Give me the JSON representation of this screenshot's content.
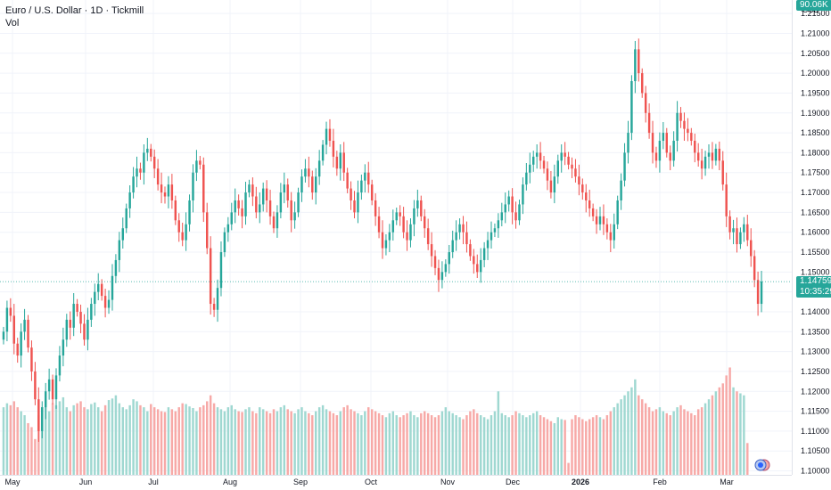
{
  "header": {
    "symbol_title": "Euro / U.S. Dollar · 1D · Tickmill",
    "volume_label": "Vol"
  },
  "axis": {
    "currency": "USD"
  },
  "badges": {
    "last_price": "1.14759",
    "countdown": "10:35:29",
    "volume_value": "90.06K"
  },
  "colors": {
    "up": "#26a69a",
    "down": "#ef5350",
    "vol_up": "#9fd8d1",
    "vol_down": "#f7a9a7",
    "grid": "#f0f3fa",
    "axis_text": "#131722"
  },
  "chart_data": {
    "type": "candlestick",
    "y_ticks": [
      "1.21500",
      "1.21000",
      "1.20500",
      "1.20000",
      "1.19500",
      "1.19000",
      "1.18500",
      "1.18000",
      "1.17500",
      "1.17000",
      "1.16500",
      "1.16000",
      "1.15500",
      "1.15000",
      "1.14500",
      "1.14000",
      "1.13500",
      "1.13000",
      "1.12500",
      "1.12000",
      "1.11500",
      "1.11000",
      "1.10500",
      "1.10000"
    ],
    "ylim": [
      1.099,
      1.2175
    ],
    "x_ticks": [
      "May",
      "Jun",
      "Jul",
      "Aug",
      "Sep",
      "Oct",
      "Nov",
      "Dec",
      "2026",
      "Feb",
      "Mar"
    ],
    "last_price": 1.14759,
    "closes": [
      1.135,
      1.141,
      1.139,
      1.132,
      1.129,
      1.135,
      1.138,
      1.131,
      1.125,
      1.118,
      1.11,
      1.116,
      1.12,
      1.123,
      1.118,
      1.124,
      1.129,
      1.133,
      1.138,
      1.136,
      1.142,
      1.14,
      1.137,
      1.133,
      1.138,
      1.142,
      1.145,
      1.147,
      1.144,
      1.141,
      1.143,
      1.149,
      1.153,
      1.158,
      1.161,
      1.166,
      1.17,
      1.174,
      1.176,
      1.175,
      1.18,
      1.181,
      1.179,
      1.176,
      1.172,
      1.17,
      1.169,
      1.172,
      1.168,
      1.163,
      1.16,
      1.158,
      1.162,
      1.168,
      1.175,
      1.178,
      1.177,
      1.165,
      1.156,
      1.142,
      1.1405,
      1.146,
      1.155,
      1.16,
      1.162,
      1.165,
      1.168,
      1.166,
      1.164,
      1.17,
      1.172,
      1.169,
      1.165,
      1.167,
      1.171,
      1.168,
      1.164,
      1.161,
      1.165,
      1.17,
      1.172,
      1.168,
      1.163,
      1.165,
      1.17,
      1.174,
      1.176,
      1.174,
      1.17,
      1.174,
      1.178,
      1.182,
      1.186,
      1.183,
      1.179,
      1.176,
      1.18,
      1.175,
      1.171,
      1.168,
      1.165,
      1.17,
      1.173,
      1.175,
      1.172,
      1.168,
      1.164,
      1.16,
      1.156,
      1.158,
      1.16,
      1.163,
      1.165,
      1.164,
      1.16,
      1.158,
      1.162,
      1.166,
      1.168,
      1.164,
      1.161,
      1.157,
      1.154,
      1.151,
      1.148,
      1.15,
      1.152,
      1.155,
      1.158,
      1.16,
      1.162,
      1.16,
      1.157,
      1.154,
      1.152,
      1.15,
      1.153,
      1.156,
      1.158,
      1.16,
      1.161,
      1.163,
      1.165,
      1.167,
      1.169,
      1.165,
      1.163,
      1.167,
      1.172,
      1.175,
      1.177,
      1.179,
      1.18,
      1.178,
      1.176,
      1.173,
      1.17,
      1.174,
      1.178,
      1.18,
      1.179,
      1.177,
      1.176,
      1.174,
      1.172,
      1.17,
      1.168,
      1.166,
      1.164,
      1.162,
      1.164,
      1.162,
      1.16,
      1.158,
      1.162,
      1.168,
      1.173,
      1.18,
      1.185,
      1.198,
      1.206,
      1.2,
      1.195,
      1.19,
      1.185,
      1.18,
      1.178,
      1.183,
      1.185,
      1.18,
      1.178,
      1.183,
      1.19,
      1.188,
      1.186,
      1.185,
      1.183,
      1.18,
      1.178,
      1.176,
      1.179,
      1.18,
      1.178,
      1.181,
      1.178,
      1.172,
      1.164,
      1.16,
      1.161,
      1.157,
      1.16,
      1.162,
      1.158,
      1.154,
      1.148,
      1.142,
      1.1476
    ],
    "volumes": [
      1.116,
      1.117,
      1.1165,
      1.1175,
      1.116,
      1.115,
      1.114,
      1.112,
      1.111,
      1.108,
      1.114,
      1.116,
      1.118,
      1.115,
      1.117,
      1.1165,
      1.1175,
      1.1185,
      1.116,
      1.115,
      1.1165,
      1.117,
      1.1175,
      1.116,
      1.1155,
      1.1168,
      1.1172,
      1.116,
      1.115,
      1.1165,
      1.1178,
      1.1182,
      1.119,
      1.117,
      1.116,
      1.1155,
      1.1165,
      1.118,
      1.1175,
      1.1165,
      1.116,
      1.115,
      1.1168,
      1.116,
      1.1155,
      1.115,
      1.1148,
      1.116,
      1.1155,
      1.115,
      1.116,
      1.117,
      1.1168,
      1.1162,
      1.1158,
      1.115,
      1.116,
      1.1165,
      1.1175,
      1.119,
      1.117,
      1.116,
      1.1155,
      1.115,
      1.116,
      1.1165,
      1.1155,
      1.115,
      1.1148,
      1.1155,
      1.116,
      1.115,
      1.1145,
      1.116,
      1.1155,
      1.115,
      1.1145,
      1.1155,
      1.115,
      1.116,
      1.1165,
      1.1155,
      1.115,
      1.1145,
      1.1155,
      1.116,
      1.115,
      1.1145,
      1.114,
      1.115,
      1.116,
      1.1165,
      1.1155,
      1.115,
      1.1145,
      1.114,
      1.115,
      1.116,
      1.1165,
      1.1155,
      1.115,
      1.1145,
      1.114,
      1.115,
      1.116,
      1.1155,
      1.115,
      1.1145,
      1.114,
      1.1135,
      1.1145,
      1.115,
      1.114,
      1.1135,
      1.114,
      1.1145,
      1.115,
      1.114,
      1.1135,
      1.1145,
      1.115,
      1.1145,
      1.114,
      1.1135,
      1.114,
      1.115,
      1.116,
      1.115,
      1.1145,
      1.114,
      1.1135,
      1.113,
      1.114,
      1.115,
      1.1155,
      1.1145,
      1.114,
      1.1135,
      1.113,
      1.114,
      1.115,
      1.12,
      1.1145,
      1.114,
      1.1135,
      1.114,
      1.115,
      1.1145,
      1.114,
      1.1135,
      1.114,
      1.1145,
      1.115,
      1.114,
      1.1135,
      1.113,
      1.1125,
      1.112,
      1.1135,
      1.113,
      1.1128,
      1.102,
      1.113,
      1.114,
      1.1135,
      1.113,
      1.1125,
      1.113,
      1.1135,
      1.114,
      1.1135,
      1.113,
      1.114,
      1.115,
      1.116,
      1.117,
      1.118,
      1.119,
      1.12,
      1.121,
      1.123,
      1.119,
      1.118,
      1.117,
      1.116,
      1.115,
      1.1155,
      1.116,
      1.115,
      1.1145,
      1.114,
      1.115,
      1.116,
      1.1165,
      1.1155,
      1.115,
      1.1145,
      1.114,
      1.1155,
      1.116,
      1.117,
      1.118,
      1.119,
      1.12,
      1.121,
      1.122,
      1.124,
      1.126,
      1.121,
      1.12,
      1.1195,
      1.119,
      1.107
    ]
  }
}
